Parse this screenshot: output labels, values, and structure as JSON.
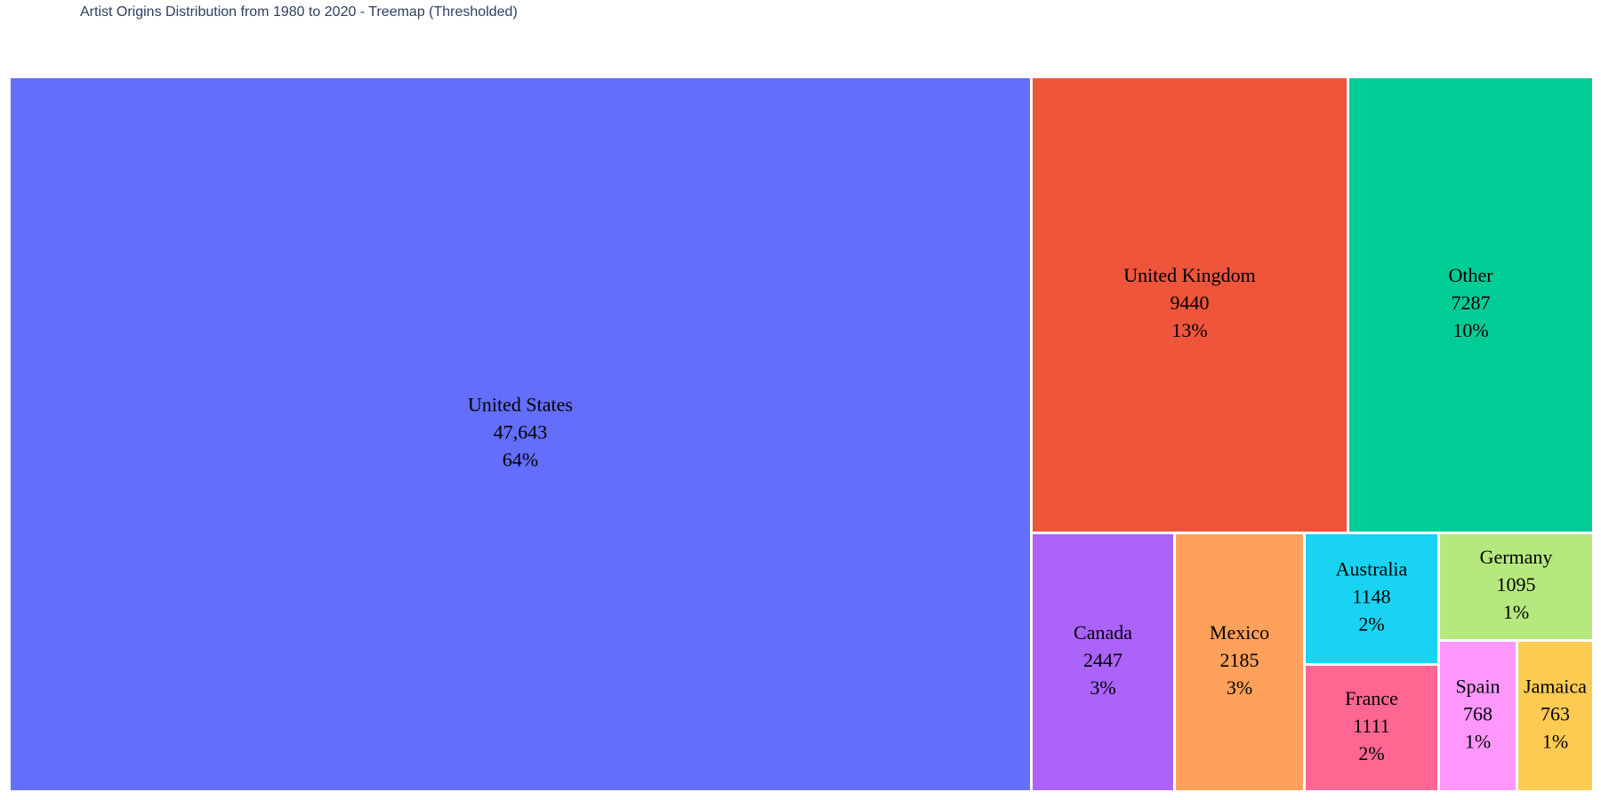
{
  "chart_data": {
    "type": "treemap",
    "title": "Artist Origins Distribution from 1980 to 2020 - Treemap (Thresholded)",
    "items": [
      {
        "label": "United States",
        "value_text": "47,643",
        "value": 47643,
        "percent_text": "64%",
        "color": "#636efa"
      },
      {
        "label": "United Kingdom",
        "value_text": "9440",
        "value": 9440,
        "percent_text": "13%",
        "color": "#ef553b"
      },
      {
        "label": "Other",
        "value_text": "7287",
        "value": 7287,
        "percent_text": "10%",
        "color": "#00cc96"
      },
      {
        "label": "Canada",
        "value_text": "2447",
        "value": 2447,
        "percent_text": "3%",
        "color": "#ab63fa"
      },
      {
        "label": "Mexico",
        "value_text": "2185",
        "value": 2185,
        "percent_text": "3%",
        "color": "#ffa15a"
      },
      {
        "label": "Australia",
        "value_text": "1148",
        "value": 1148,
        "percent_text": "2%",
        "color": "#19d3f3"
      },
      {
        "label": "France",
        "value_text": "1111",
        "value": 1111,
        "percent_text": "2%",
        "color": "#ff6692"
      },
      {
        "label": "Germany",
        "value_text": "1095",
        "value": 1095,
        "percent_text": "1%",
        "color": "#b6e880"
      },
      {
        "label": "Spain",
        "value_text": "768",
        "value": 768,
        "percent_text": "1%",
        "color": "#ff97ff"
      },
      {
        "label": "Jamaica",
        "value_text": "763",
        "value": 763,
        "percent_text": "1%",
        "color": "#fecb52"
      }
    ]
  }
}
